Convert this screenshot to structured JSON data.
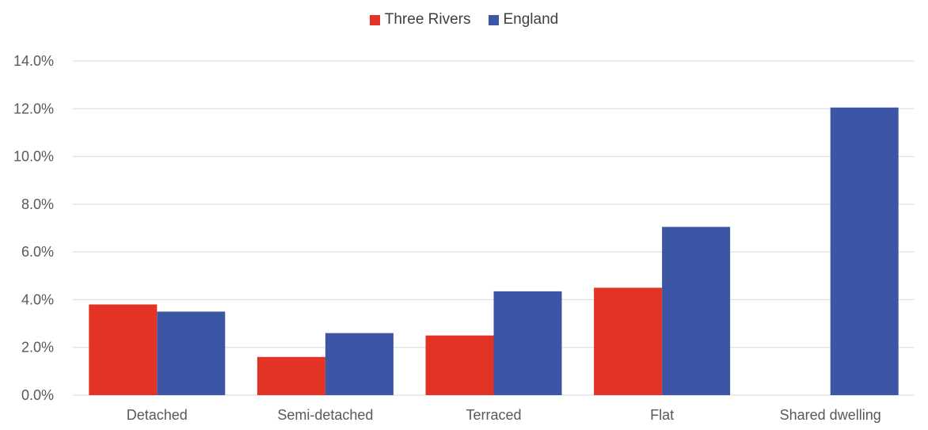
{
  "chart_data": {
    "type": "bar",
    "title": "",
    "xlabel": "",
    "ylabel": "",
    "categories": [
      "Detached",
      "Semi-detached",
      "Terraced",
      "Flat",
      "Shared dwelling"
    ],
    "series": [
      {
        "name": "Three Rivers",
        "color": "#e33324",
        "values": [
          3.8,
          1.6,
          2.5,
          4.5,
          null
        ]
      },
      {
        "name": "England",
        "color": "#3c56a5",
        "values": [
          3.5,
          2.6,
          4.35,
          7.05,
          12.05
        ]
      }
    ],
    "y_ticks": [
      "0.0%",
      "2.0%",
      "4.0%",
      "6.0%",
      "8.0%",
      "10.0%",
      "12.0%",
      "14.0%"
    ],
    "ylim": [
      0,
      14
    ],
    "grid": true,
    "legend_position": "top-center"
  }
}
